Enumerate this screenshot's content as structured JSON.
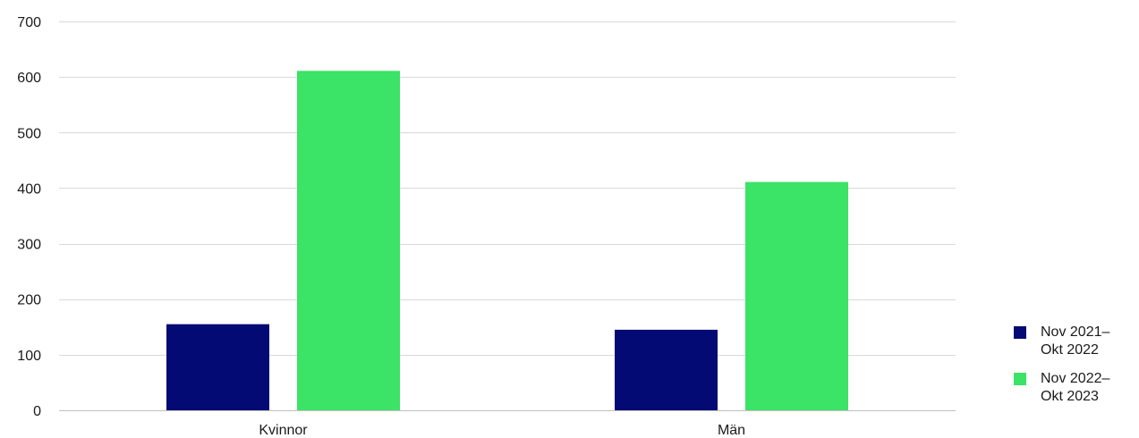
{
  "chart_data": {
    "type": "bar",
    "title": "",
    "xlabel": "",
    "ylabel": "",
    "categories": [
      "Kvinnor",
      "Män"
    ],
    "series": [
      {
        "name": "Nov 2021–\nOkt 2022",
        "color": "#040a73",
        "values": [
          155,
          145
        ]
      },
      {
        "name": "Nov 2022–\nOkt 2023",
        "color": "#3be366",
        "values": [
          611,
          411
        ]
      }
    ],
    "ylim": [
      0,
      700
    ],
    "yticks": [
      0,
      100,
      200,
      300,
      400,
      500,
      600,
      700
    ],
    "grid": true,
    "legend_position": "right-bottom"
  }
}
